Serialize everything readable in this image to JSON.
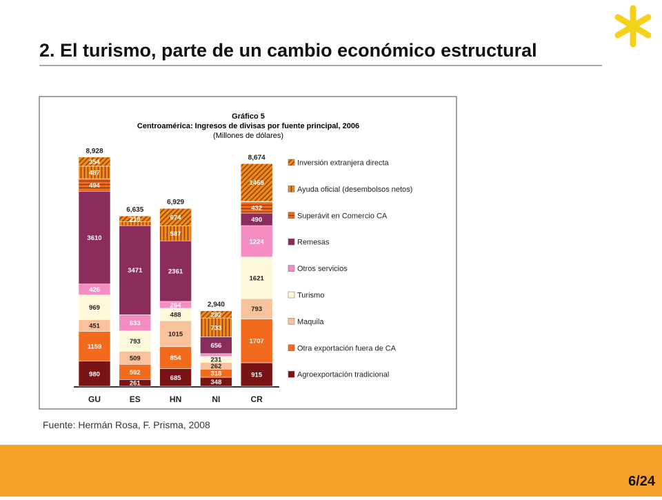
{
  "slide_title": "2. El turismo, parte de un cambio económico estructural",
  "source": "Fuente: Hermán Rosa, F. Prisma, 2008",
  "page_number": "6/24",
  "chart_data": {
    "type": "stacked_bar",
    "title": "Gráfico 5",
    "subtitle": "Centroamérica: Ingresos de divisas por fuente principal, 2006",
    "units": "(Millones de dólares)",
    "categories": [
      "GU",
      "ES",
      "HN",
      "NI",
      "CR"
    ],
    "totals": [
      8928,
      6635,
      6929,
      2940,
      8674
    ],
    "total_labels": [
      "8,928",
      "6,635",
      "6,929",
      "2,940",
      "8,674"
    ],
    "series": [
      {
        "name": "Agroexportación tradicional",
        "color": "#7a1414",
        "values": [
          980,
          261,
          685,
          348,
          915
        ]
      },
      {
        "name": "Otra exportación fuera de CA",
        "color": "#f26a1b",
        "values": [
          1159,
          592,
          854,
          318,
          1707
        ]
      },
      {
        "name": "Maquila",
        "color": "#f8c39c",
        "values": [
          451,
          509,
          1015,
          262,
          793
        ]
      },
      {
        "name": "Turismo",
        "color": "#fff9dc",
        "values": [
          969,
          793,
          488,
          231,
          1621
        ]
      },
      {
        "name": "Otros servicios",
        "color": "#f58dc3",
        "values": [
          426,
          633,
          264,
          110,
          1224
        ],
        "value_labels": [
          "426",
          "633",
          "264",
          null,
          "1224"
        ]
      },
      {
        "name": "Remesas",
        "color": "#8a2d5c",
        "values": [
          3610,
          3471,
          2361,
          656,
          490
        ]
      },
      {
        "name": "Superávit en Comercio CA",
        "color": "#f26a1b",
        "pattern": "horizontal",
        "values": [
          494,
          null,
          null,
          null,
          432
        ]
      },
      {
        "name": "Ayuda oficial (desembolsos netos)",
        "color": "#f08a1c",
        "pattern": "vertical",
        "values": [
          487,
          157,
          587,
          733,
          23
        ],
        "value_labels": [
          "487",
          null,
          "587",
          "733",
          null
        ]
      },
      {
        "name": "Inversión extranjera directa",
        "color": "#f08a1c",
        "pattern": "diagonal",
        "values": [
          354,
          219,
          674,
          282,
          1469
        ]
      }
    ]
  }
}
